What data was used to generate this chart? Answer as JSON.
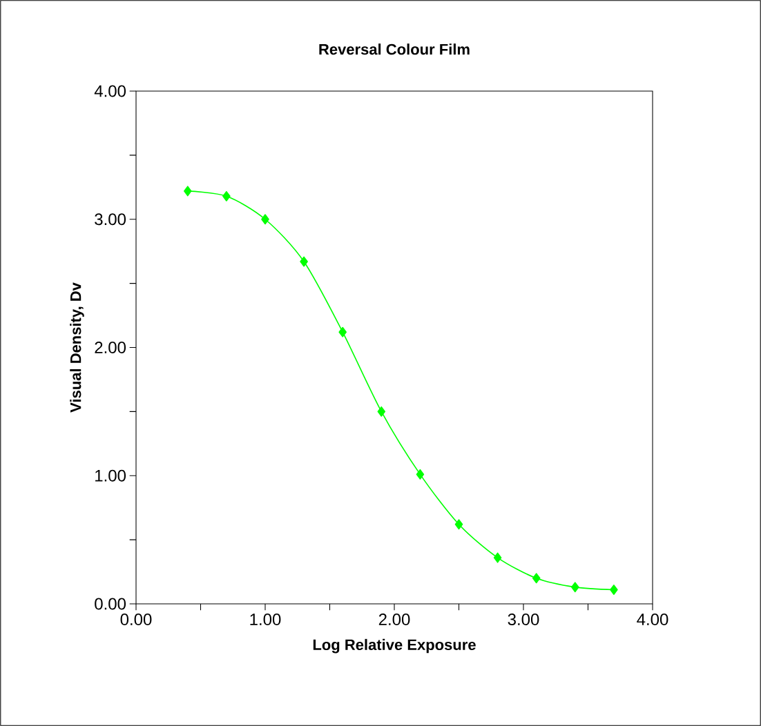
{
  "chart_data": {
    "type": "line",
    "title": "Reversal Colour Film",
    "xlabel": "Log Relative Exposure",
    "ylabel": "Visual Density, Dv",
    "x": [
      0.4,
      0.7,
      1.0,
      1.3,
      1.6,
      1.9,
      2.2,
      2.5,
      2.8,
      3.1,
      3.4,
      3.7
    ],
    "series": [
      {
        "color": "#00ff00",
        "values": [
          3.22,
          3.18,
          3.0,
          2.67,
          2.12,
          1.5,
          1.01,
          0.62,
          0.36,
          0.2,
          0.13,
          0.11
        ]
      }
    ],
    "xlim": [
      0,
      4
    ],
    "ylim": [
      0,
      4
    ],
    "xticks": [
      {
        "value": 0,
        "label": "0.00"
      },
      {
        "value": 0.5,
        "label": null
      },
      {
        "value": 1,
        "label": "1.00"
      },
      {
        "value": 1.5,
        "label": null
      },
      {
        "value": 2,
        "label": "2.00"
      },
      {
        "value": 2.5,
        "label": null
      },
      {
        "value": 3,
        "label": "3.00"
      },
      {
        "value": 3.5,
        "label": null
      },
      {
        "value": 4,
        "label": "4.00"
      }
    ],
    "yticks": [
      {
        "value": 0,
        "label": "0.00"
      },
      {
        "value": 0.5,
        "label": null
      },
      {
        "value": 1,
        "label": "1.00"
      },
      {
        "value": 1.5,
        "label": null
      },
      {
        "value": 2,
        "label": "2.00"
      },
      {
        "value": 2.5,
        "label": null
      },
      {
        "value": 3,
        "label": "3.00"
      },
      {
        "value": 3.5,
        "label": null
      },
      {
        "value": 4,
        "label": "4.00"
      }
    ],
    "marker": "diamond",
    "line_style": "solid"
  }
}
